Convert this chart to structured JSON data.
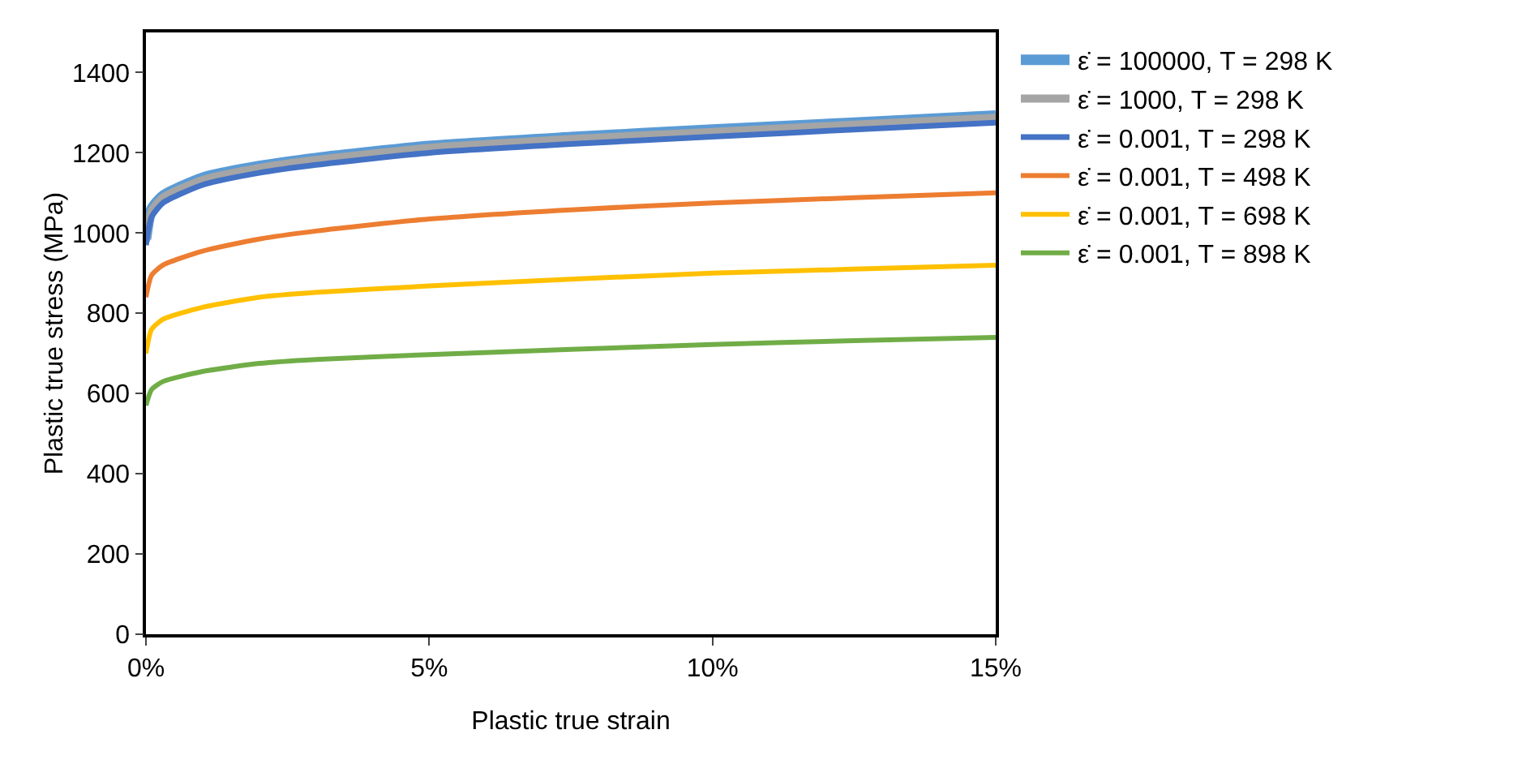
{
  "chart_data": {
    "type": "line",
    "xlabel": "Plastic true strain",
    "ylabel": "Plastic true stress (MPa)",
    "x": [
      0,
      0.001,
      0.003,
      0.01,
      0.02,
      0.03,
      0.05,
      0.075,
      0.1,
      0.125,
      0.15
    ],
    "series": [
      {
        "name": "ε̇ = 100000, T = 298 K",
        "color": "#5b9bd5",
        "values": [
          985,
          1060,
          1093,
          1138,
          1167,
          1187,
          1217,
          1239,
          1258,
          1275,
          1293
        ]
      },
      {
        "name": "ε̇ = 1000, T = 298 K",
        "color": "#a5a5a5",
        "values": [
          980,
          1055,
          1088,
          1132,
          1162,
          1182,
          1212,
          1234,
          1252,
          1270,
          1287
        ]
      },
      {
        "name": "ε̇ = 0.001, T = 298 K",
        "color": "#4472c4",
        "values": [
          970,
          1040,
          1075,
          1120,
          1150,
          1170,
          1200,
          1222,
          1240,
          1258,
          1275
        ]
      },
      {
        "name": "ε̇ = 0.001, T = 498 K",
        "color": "#ed7d31",
        "values": [
          840,
          895,
          920,
          955,
          985,
          1005,
          1035,
          1058,
          1075,
          1088,
          1100
        ]
      },
      {
        "name": "ε̇ = 0.001, T = 698 K",
        "color": "#ffc000",
        "values": [
          700,
          760,
          785,
          815,
          840,
          852,
          868,
          885,
          900,
          910,
          920
        ]
      },
      {
        "name": "ε̇ = 0.001, T = 898 K",
        "color": "#70ad47",
        "values": [
          570,
          610,
          630,
          655,
          675,
          685,
          697,
          710,
          722,
          732,
          740
        ]
      }
    ],
    "xlim": [
      0,
      0.15
    ],
    "xticks": [
      {
        "value": 0,
        "label": "0%"
      },
      {
        "value": 0.05,
        "label": "5%"
      },
      {
        "value": 0.1,
        "label": "10%"
      },
      {
        "value": 0.15,
        "label": "15%"
      }
    ],
    "ylim": [
      0,
      1500
    ],
    "yticks": [
      0,
      200,
      400,
      600,
      800,
      1000,
      1200,
      1400
    ],
    "grid": false,
    "legend": "right",
    "marker": "none",
    "line_style": "solid"
  }
}
